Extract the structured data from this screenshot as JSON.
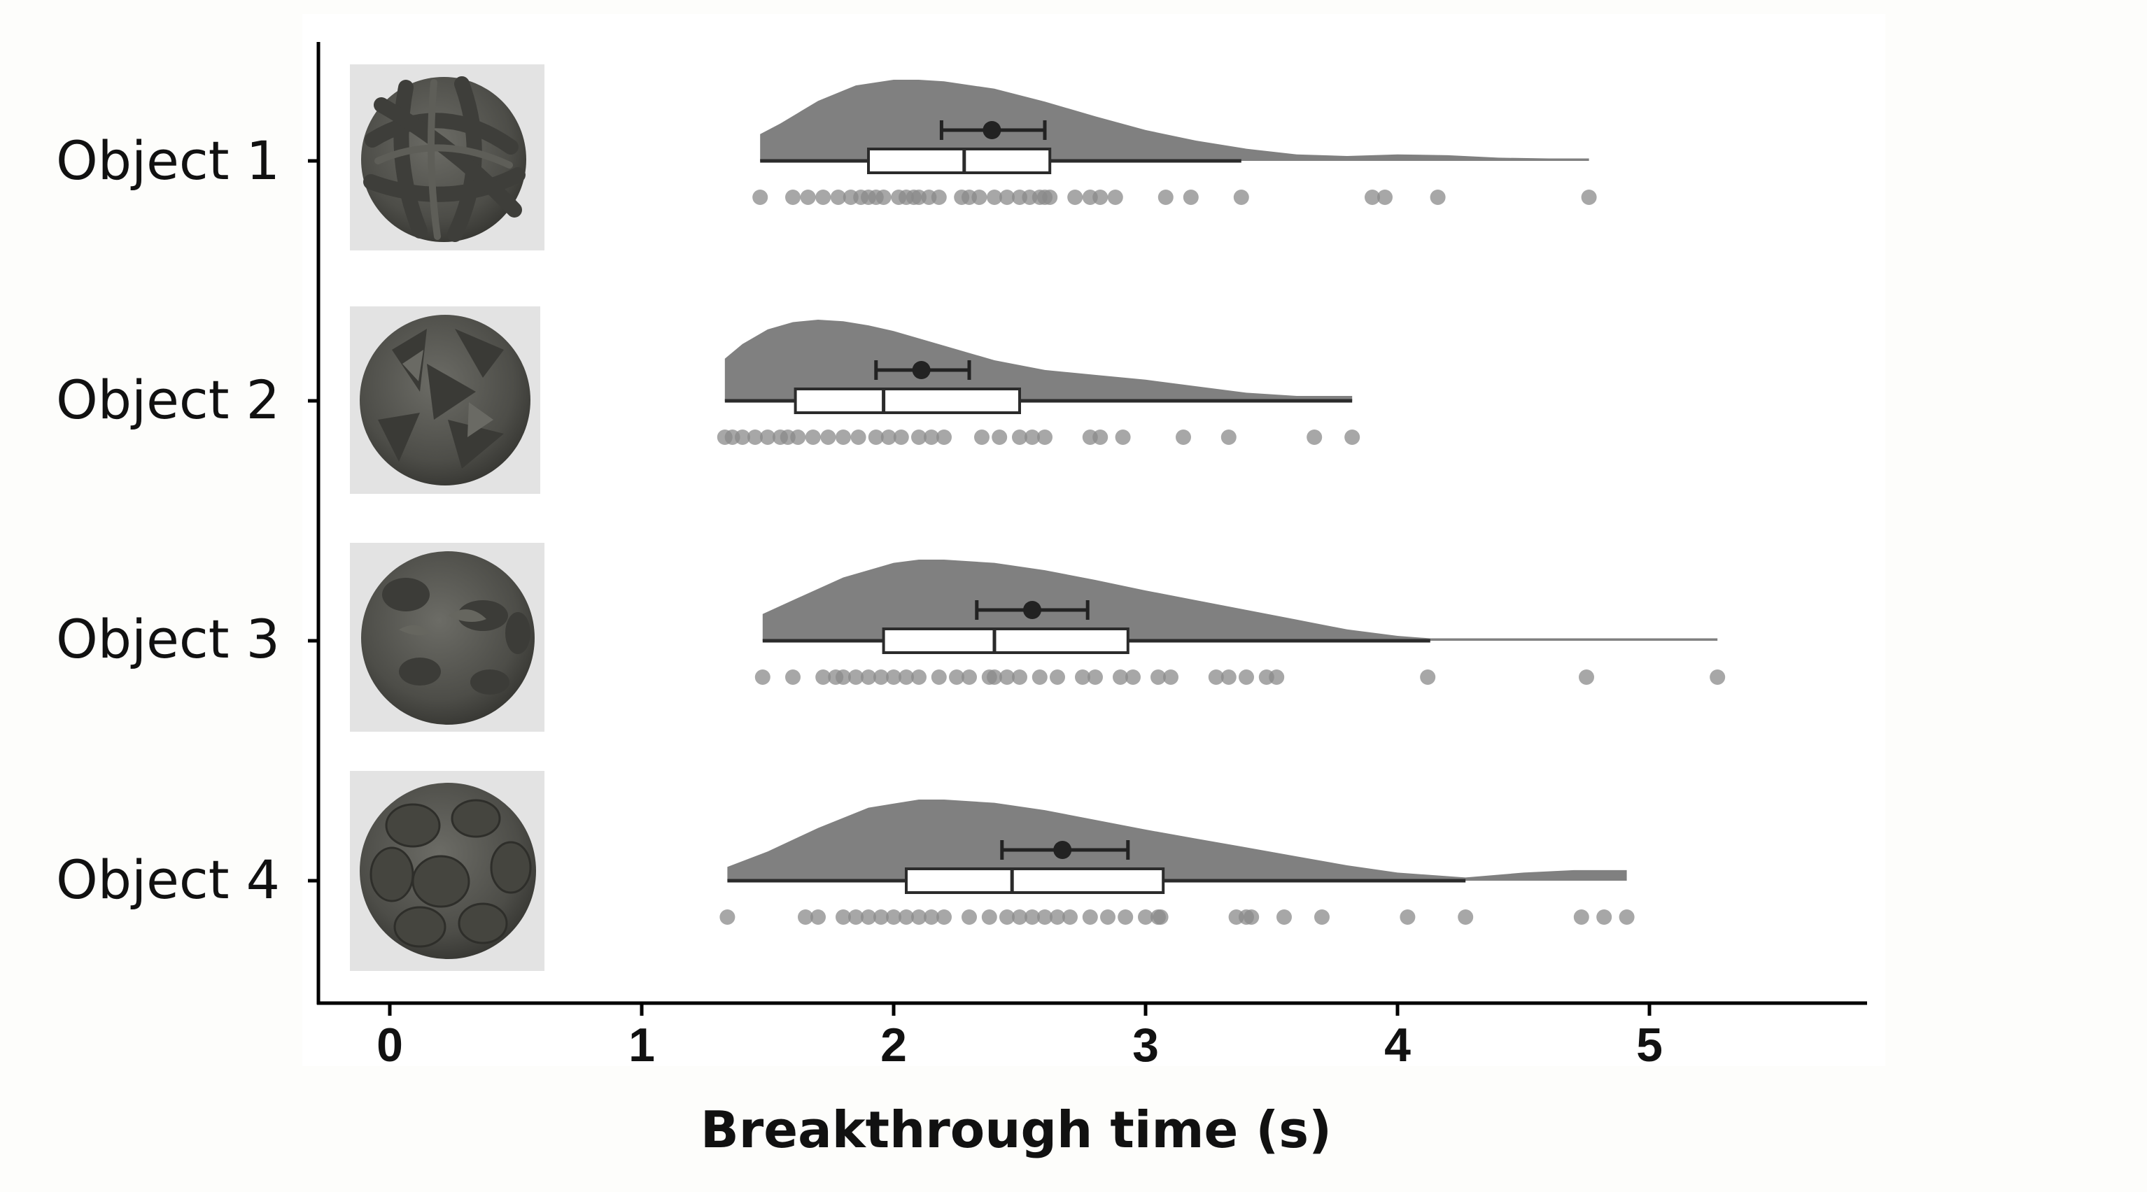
{
  "chart_data": {
    "type": "raincloud",
    "xlabel": "Breakthrough time (s)",
    "xlim": [
      -0.28,
      5.85
    ],
    "x_ticks": [
      0,
      1,
      2,
      3,
      4,
      5
    ],
    "grid": false,
    "colors": {
      "cloud": "#808080",
      "point": "#8a8a8a",
      "box": "#2b2b2b",
      "mean": "#222222"
    },
    "categories": [
      "Object 1",
      "Object 2",
      "Object 3",
      "Object 4"
    ],
    "icons": [
      "object-1-render",
      "object-2-render",
      "object-3-render",
      "object-4-render"
    ],
    "series": [
      {
        "category": "Object 1",
        "box": {
          "min": 1.47,
          "q1": 1.9,
          "median": 2.28,
          "q3": 2.62,
          "max": 3.38
        },
        "mean": 2.39,
        "ci": [
          2.19,
          2.6
        ],
        "density": {
          "x": [
            1.47,
            1.55,
            1.7,
            1.85,
            2.0,
            2.1,
            2.2,
            2.4,
            2.6,
            2.8,
            3.0,
            3.2,
            3.4,
            3.6,
            3.8,
            4.0,
            4.2,
            4.4,
            4.6,
            4.76
          ],
          "y": [
            0.33,
            0.46,
            0.74,
            0.93,
            1.0,
            1.0,
            0.98,
            0.89,
            0.73,
            0.55,
            0.38,
            0.25,
            0.15,
            0.08,
            0.06,
            0.08,
            0.07,
            0.04,
            0.03,
            0.03
          ]
        },
        "points": [
          1.47,
          1.6,
          1.66,
          1.72,
          1.78,
          1.83,
          1.87,
          1.9,
          1.93,
          1.96,
          2.02,
          2.05,
          2.08,
          2.1,
          2.14,
          2.18,
          2.27,
          2.3,
          2.34,
          2.4,
          2.45,
          2.5,
          2.54,
          2.58,
          2.6,
          2.62,
          2.72,
          2.78,
          2.82,
          2.88,
          3.08,
          3.18,
          3.38,
          3.9,
          3.95,
          4.16,
          4.76
        ]
      },
      {
        "category": "Object 2",
        "box": {
          "min": 1.33,
          "q1": 1.61,
          "median": 1.96,
          "q3": 2.5,
          "max": 3.82
        },
        "mean": 2.11,
        "ci": [
          1.93,
          2.3
        ],
        "density": {
          "x": [
            1.33,
            1.4,
            1.5,
            1.6,
            1.7,
            1.8,
            1.9,
            2.0,
            2.2,
            2.4,
            2.6,
            2.8,
            3.0,
            3.2,
            3.4,
            3.6,
            3.82
          ],
          "y": [
            0.52,
            0.7,
            0.88,
            0.97,
            1.0,
            0.98,
            0.93,
            0.86,
            0.68,
            0.5,
            0.38,
            0.32,
            0.26,
            0.18,
            0.1,
            0.06,
            0.06
          ]
        },
        "points": [
          1.33,
          1.36,
          1.4,
          1.45,
          1.5,
          1.55,
          1.58,
          1.62,
          1.68,
          1.74,
          1.8,
          1.86,
          1.93,
          1.98,
          2.03,
          2.1,
          2.15,
          2.2,
          2.35,
          2.42,
          2.5,
          2.55,
          2.6,
          2.78,
          2.82,
          2.91,
          3.15,
          3.33,
          3.67,
          3.82
        ]
      },
      {
        "category": "Object 3",
        "box": {
          "min": 1.48,
          "q1": 1.96,
          "median": 2.4,
          "q3": 2.93,
          "max": 4.13
        },
        "mean": 2.55,
        "ci": [
          2.33,
          2.77
        ],
        "density": {
          "x": [
            1.48,
            1.6,
            1.8,
            2.0,
            2.1,
            2.2,
            2.4,
            2.6,
            2.8,
            3.0,
            3.2,
            3.4,
            3.6,
            3.8,
            4.0,
            4.13,
            4.4,
            4.7,
            5.0,
            5.27
          ],
          "y": [
            0.33,
            0.5,
            0.78,
            0.96,
            1.0,
            1.0,
            0.96,
            0.87,
            0.75,
            0.62,
            0.5,
            0.38,
            0.26,
            0.14,
            0.06,
            0.03,
            0.03,
            0.03,
            0.03,
            0.03
          ]
        },
        "points": [
          1.48,
          1.6,
          1.72,
          1.77,
          1.8,
          1.85,
          1.9,
          1.95,
          2.0,
          2.05,
          2.1,
          2.18,
          2.25,
          2.3,
          2.38,
          2.4,
          2.45,
          2.5,
          2.58,
          2.65,
          2.75,
          2.8,
          2.9,
          2.95,
          3.05,
          3.1,
          3.28,
          3.33,
          3.4,
          3.48,
          3.52,
          4.12,
          4.75,
          5.27
        ]
      },
      {
        "category": "Object 4",
        "box": {
          "min": 1.34,
          "q1": 2.05,
          "median": 2.47,
          "q3": 3.07,
          "max": 4.27
        },
        "mean": 2.67,
        "ci": [
          2.43,
          2.93
        ],
        "density": {
          "x": [
            1.34,
            1.5,
            1.7,
            1.9,
            2.1,
            2.2,
            2.4,
            2.6,
            2.8,
            3.0,
            3.2,
            3.4,
            3.6,
            3.8,
            4.0,
            4.27,
            4.5,
            4.7,
            4.91
          ],
          "y": [
            0.17,
            0.36,
            0.65,
            0.9,
            1.0,
            1.0,
            0.96,
            0.87,
            0.75,
            0.63,
            0.52,
            0.41,
            0.3,
            0.19,
            0.1,
            0.04,
            0.1,
            0.13,
            0.13
          ]
        },
        "points": [
          1.34,
          1.65,
          1.7,
          1.8,
          1.85,
          1.9,
          1.95,
          2.0,
          2.05,
          2.1,
          2.15,
          2.2,
          2.3,
          2.38,
          2.45,
          2.5,
          2.55,
          2.6,
          2.65,
          2.7,
          2.78,
          2.85,
          2.92,
          3.0,
          3.05,
          3.06,
          3.36,
          3.4,
          3.42,
          3.55,
          3.7,
          4.04,
          4.27,
          4.73,
          4.82,
          4.91
        ]
      }
    ]
  }
}
